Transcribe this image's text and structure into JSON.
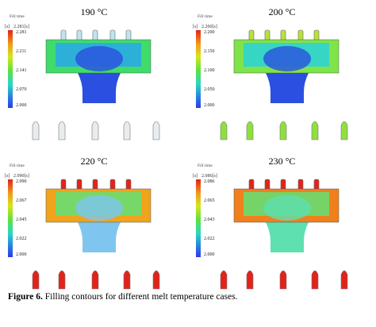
{
  "panels": [
    {
      "title": "190 °C",
      "legend_title": "Fill time",
      "unit": "[s]",
      "max_display": "2.281[s]",
      "ticks": [
        "2.281",
        "2.211",
        "2.141",
        "2.070",
        "2.000"
      ],
      "colors": {
        "runner": "#2aa8ea",
        "center": "#2b4fe0",
        "arms": "#3fdc6a",
        "gates": "#bfe6f0",
        "parts": "#e8ecef"
      }
    },
    {
      "title": "200 °C",
      "legend_title": "Fill time",
      "unit": "[s]",
      "max_display": "2.200[s]",
      "ticks": [
        "2.200",
        "2.150",
        "2.100",
        "2.050",
        "2.000"
      ],
      "colors": {
        "runner": "#2ad2d8",
        "center": "#2b4fe0",
        "arms": "#7fe34a",
        "gates": "#b8e23a",
        "parts": "#8fe03e"
      }
    },
    {
      "title": "220 °C",
      "legend_title": "Fill time",
      "unit": "[s]",
      "max_display": "2.090[s]",
      "ticks": [
        "2.090",
        "2.067",
        "2.045",
        "2.022",
        "2.000"
      ],
      "colors": {
        "runner": "#5fe276",
        "center": "#7ec6f0",
        "arms": "#f0a41c",
        "gates": "#e2231a",
        "parts": "#e2231a"
      }
    },
    {
      "title": "230 °C",
      "legend_title": "Fill time",
      "unit": "[s]",
      "max_display": "2.086[s]",
      "ticks": [
        "2.086",
        "2.065",
        "2.043",
        "2.022",
        "2.000"
      ],
      "colors": {
        "runner": "#5fe276",
        "center": "#5ee0b0",
        "arms": "#f0801c",
        "gates": "#e2231a",
        "parts": "#e2231a"
      }
    }
  ],
  "caption": {
    "label": "Figure 6.",
    "text": " Filling contours for different melt temperature cases."
  }
}
